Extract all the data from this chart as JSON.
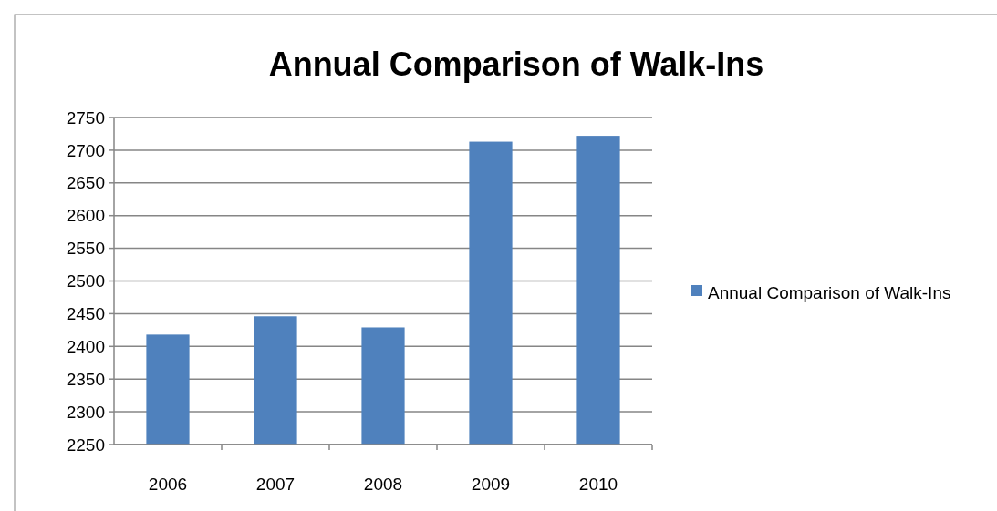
{
  "chart_data": {
    "type": "bar",
    "title": "Annual Comparison of Walk-Ins",
    "categories": [
      "2006",
      "2007",
      "2008",
      "2009",
      "2010"
    ],
    "series": [
      {
        "name": "Annual Comparison of Walk-Ins",
        "color": "#4f81bd",
        "values": [
          2418,
          2446,
          2429,
          2713,
          2722
        ]
      }
    ],
    "ylim": [
      2250,
      2750
    ],
    "yticks": [
      2250,
      2300,
      2350,
      2400,
      2450,
      2500,
      2550,
      2600,
      2650,
      2700,
      2750
    ],
    "grid": "y",
    "legend": "right"
  }
}
